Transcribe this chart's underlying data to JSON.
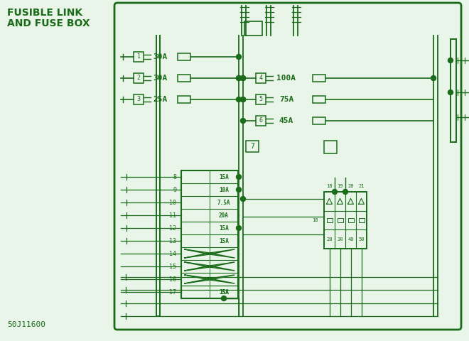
{
  "bg_color": "#e8f5e8",
  "line_color": "#1a6b1a",
  "text_color": "#1a6b1a",
  "title_line1": "FUSIBLE LINK",
  "title_line2": "AND FUSE BOX",
  "subtitle": "50J11600",
  "fig_width": 6.6,
  "fig_height": 4.8,
  "dpi": 100
}
